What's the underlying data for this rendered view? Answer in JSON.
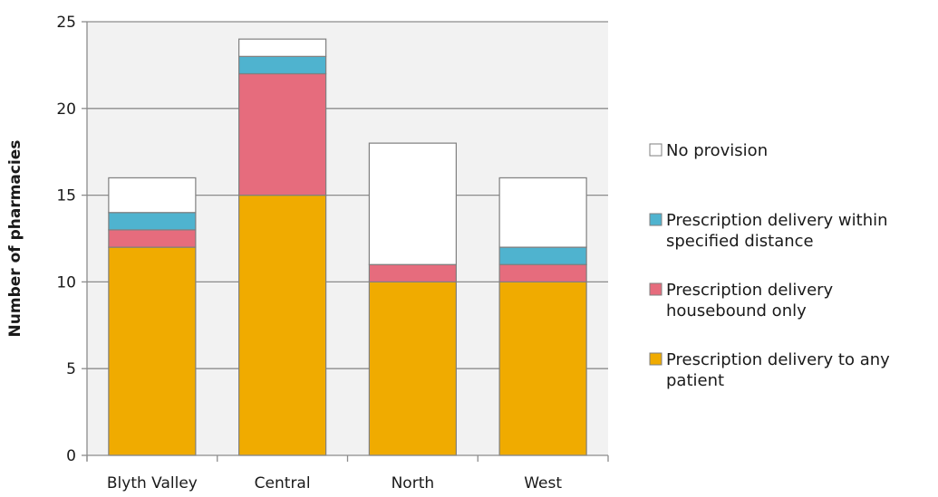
{
  "chart_data": {
    "type": "bar",
    "stacked": true,
    "categories": [
      "Blyth Valley",
      "Central",
      "North",
      "West"
    ],
    "series": [
      {
        "name": "Prescription delivery to any patient",
        "color": "#f0ab00",
        "values": [
          12,
          15,
          10,
          10
        ]
      },
      {
        "name": "Prescription delivery housebound only",
        "color": "#e66c7d",
        "values": [
          1,
          7,
          1,
          1
        ]
      },
      {
        "name": "Prescription delivery within specified distance",
        "color": "#4fb3cf",
        "values": [
          1,
          1,
          0,
          1
        ]
      },
      {
        "name": "No provision",
        "color": "#ffffff",
        "values": [
          2,
          1,
          7,
          4
        ]
      }
    ],
    "legend_order": [
      3,
      2,
      1,
      0
    ],
    "legend_lines": [
      [
        "No provision"
      ],
      [
        "Prescription delivery within",
        "specified distance"
      ],
      [
        "Prescription delivery",
        "housebound only"
      ],
      [
        "Prescription delivery to any",
        "patient"
      ]
    ],
    "title": "",
    "xlabel": "",
    "ylabel": "Number of pharmacies",
    "ylim": [
      0,
      25
    ],
    "yticks": [
      0,
      5,
      10,
      15,
      20,
      25
    ],
    "grid": true,
    "plot_background": "#f2f2f2",
    "legend_position": "right"
  }
}
